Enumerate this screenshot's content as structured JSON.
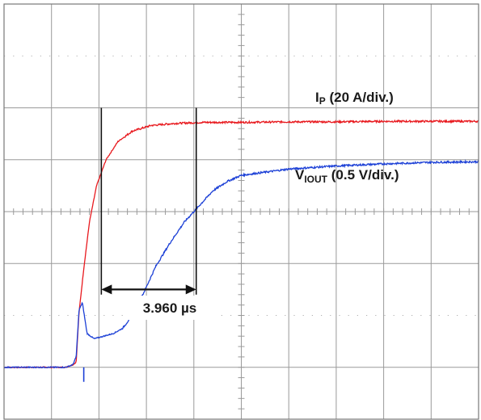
{
  "chart_data": {
    "type": "line",
    "title": "",
    "grid": "on",
    "x_divisions": 10,
    "y_divisions": 8,
    "series": [
      {
        "name": "IP (20 A/div.)",
        "color": "#e8191e",
        "x": [
          0.0,
          1.0,
          1.3,
          1.45,
          1.52,
          1.58,
          1.68,
          1.8,
          1.95,
          2.15,
          2.4,
          2.7,
          3.1,
          3.6,
          4.2,
          5.0,
          6.0,
          7.0,
          8.0,
          9.0,
          10.0
        ],
        "y": [
          1.0,
          1.0,
          1.0,
          1.05,
          1.1,
          2.05,
          2.9,
          3.8,
          4.5,
          5.0,
          5.35,
          5.55,
          5.66,
          5.7,
          5.72,
          5.72,
          5.73,
          5.73,
          5.74,
          5.74,
          5.74
        ]
      },
      {
        "name": "VIOUT (0.5 V/div.)",
        "color": "#1b3fd6",
        "x": [
          0.0,
          1.0,
          1.3,
          1.45,
          1.52,
          1.58,
          1.65,
          1.75,
          1.9,
          2.1,
          2.3,
          2.5,
          2.7,
          2.95,
          3.2,
          3.5,
          3.8,
          4.1,
          4.4,
          4.7,
          5.0,
          6.0,
          7.0,
          8.0,
          9.0,
          10.0
        ],
        "y": [
          1.0,
          1.0,
          1.0,
          1.05,
          1.2,
          2.1,
          2.25,
          1.65,
          1.55,
          1.6,
          1.65,
          1.75,
          2.0,
          2.45,
          2.95,
          3.4,
          3.8,
          4.1,
          4.4,
          4.58,
          4.7,
          4.82,
          4.88,
          4.92,
          4.95,
          4.96
        ]
      }
    ],
    "cursors": [
      2.05,
      4.05
    ],
    "annotations": [
      {
        "label_main": "I",
        "label_sub": "P",
        "label_rest": " (20 A/div.)"
      },
      {
        "label_main": "V",
        "label_sub": "IOUT",
        "label_rest": " (0.5 V/div.)"
      }
    ],
    "measurement": "3.960 µs"
  }
}
